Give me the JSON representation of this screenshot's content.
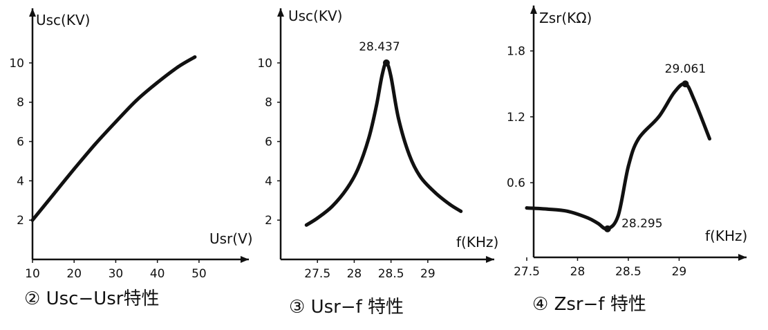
{
  "chart_data": [
    {
      "type": "line",
      "caption": "② Usc−Usr特性",
      "ylabel": "Usc(KV)",
      "xlabel": "Usr(V)",
      "xticks": [
        "10",
        "20",
        "30",
        "40",
        "50"
      ],
      "yticks": [
        "2",
        "4",
        "6",
        "8",
        "10"
      ],
      "xlim": [
        10,
        55
      ],
      "ylim": [
        0,
        11.3
      ],
      "grid": false,
      "series": [
        {
          "x": [
            10,
            15,
            20,
            25,
            30,
            35,
            40,
            45,
            49
          ],
          "y": [
            2.0,
            3.3,
            4.6,
            5.85,
            7.0,
            8.1,
            9.0,
            9.8,
            10.3
          ]
        }
      ],
      "annotations": []
    },
    {
      "type": "line",
      "caption": "③ Usr−f 特性",
      "ylabel": "Usc(KV)",
      "xlabel": "f(KHz)",
      "xticks": [
        "27.5",
        "28",
        "28.5",
        "29"
      ],
      "yticks": [
        "2",
        "4",
        "6",
        "8",
        "10"
      ],
      "xlim": [
        27.0,
        29.8
      ],
      "ylim": [
        0,
        11.3
      ],
      "grid": false,
      "series": [
        {
          "x": [
            27.35,
            27.5,
            27.7,
            27.9,
            28.05,
            28.2,
            28.3,
            28.38,
            28.437,
            28.5,
            28.6,
            28.75,
            28.9,
            29.1,
            29.3,
            29.45
          ],
          "y": [
            1.75,
            2.1,
            2.7,
            3.6,
            4.6,
            6.2,
            7.8,
            9.4,
            10.0,
            9.3,
            7.2,
            5.3,
            4.2,
            3.4,
            2.8,
            2.45
          ]
        }
      ],
      "annotations": [
        {
          "x": 28.437,
          "y": 10.0,
          "text": "28.437"
        }
      ]
    },
    {
      "type": "line",
      "caption": "④ Zsr−f 特性",
      "ylabel": "Zsr(KΩ)",
      "xlabel": "f(KHz)",
      "xticks": [
        "27.5",
        "28",
        "28.5",
        "29"
      ],
      "yticks": [
        "0.6",
        "1.2",
        "1.8"
      ],
      "xlim": [
        27.5,
        29.8
      ],
      "ylim": [
        -0.08,
        2.1
      ],
      "grid": false,
      "series": [
        {
          "x": [
            27.5,
            27.7,
            27.9,
            28.1,
            28.2,
            28.295,
            28.4,
            28.5,
            28.6,
            28.8,
            28.95,
            29.061,
            29.15,
            29.3
          ],
          "y": [
            0.37,
            0.36,
            0.34,
            0.28,
            0.23,
            0.18,
            0.3,
            0.75,
            1.0,
            1.2,
            1.42,
            1.5,
            1.35,
            1.0
          ]
        }
      ],
      "annotations": [
        {
          "x": 28.295,
          "y": 0.18,
          "text": "28.295"
        },
        {
          "x": 29.061,
          "y": 1.5,
          "text": "29.061"
        }
      ]
    }
  ]
}
